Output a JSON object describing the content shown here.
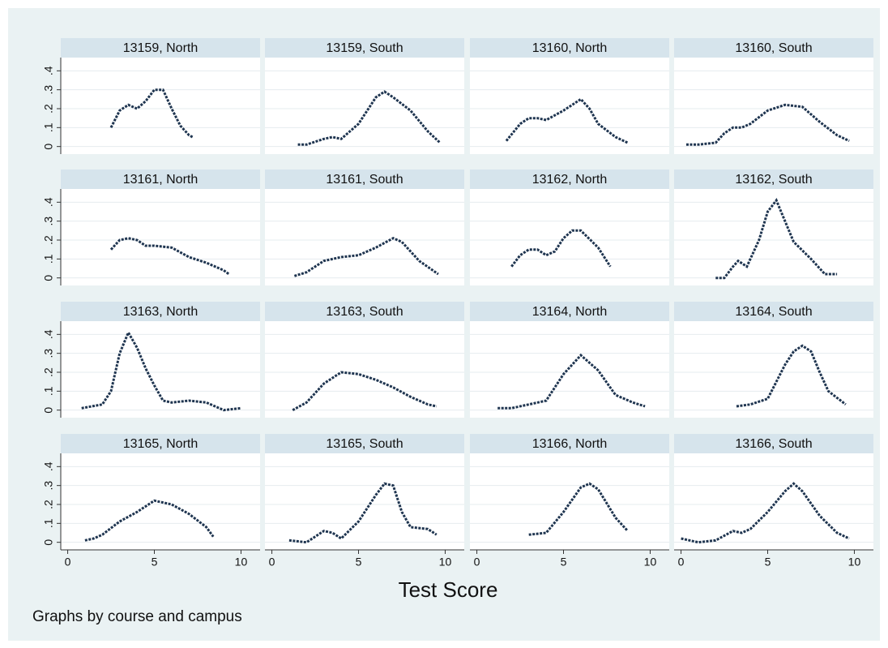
{
  "chart_data": {
    "type": "line",
    "xlabel": "Test Score",
    "note": "Graphs by course and campus",
    "color": "#1f3550",
    "xlim": [
      -0.4,
      11.1
    ],
    "ylim": [
      -0.04,
      0.47
    ],
    "xticks": [
      0,
      5,
      10
    ],
    "yticks": [
      0,
      {
        "value": 0.1,
        "label": ".1"
      },
      {
        "value": 0.2,
        "label": ".2"
      },
      {
        "value": 0.3,
        "label": ".3"
      },
      {
        "value": 0.4,
        "label": ".4"
      }
    ],
    "grid": true,
    "panels": [
      {
        "title": "13159, North",
        "x": [
          2.5,
          3,
          3.5,
          4,
          4.5,
          5,
          5.5,
          6,
          6.5,
          7,
          7.2
        ],
        "values": [
          0.1,
          0.19,
          0.22,
          0.2,
          0.24,
          0.3,
          0.3,
          0.2,
          0.11,
          0.06,
          0.05
        ]
      },
      {
        "title": "13159, South",
        "x": [
          1.5,
          2,
          3,
          3.5,
          4,
          5,
          6,
          6.5,
          7,
          8,
          9,
          9.7
        ],
        "values": [
          0.01,
          0.01,
          0.04,
          0.05,
          0.04,
          0.12,
          0.26,
          0.29,
          0.26,
          0.19,
          0.08,
          0.02
        ]
      },
      {
        "title": "13160, North",
        "x": [
          1.7,
          2.5,
          3,
          3.5,
          4,
          5,
          6,
          6.5,
          7,
          8,
          8.7
        ],
        "values": [
          0.03,
          0.12,
          0.15,
          0.15,
          0.14,
          0.19,
          0.25,
          0.2,
          0.12,
          0.05,
          0.02
        ]
      },
      {
        "title": "13160, South",
        "x": [
          0.3,
          1,
          2,
          2.5,
          3,
          3.5,
          4,
          5,
          6,
          7,
          8,
          9,
          9.7
        ],
        "values": [
          0.01,
          0.01,
          0.02,
          0.07,
          0.1,
          0.1,
          0.12,
          0.19,
          0.22,
          0.21,
          0.13,
          0.06,
          0.03
        ]
      },
      {
        "title": "13161, North",
        "x": [
          2.5,
          3,
          3.5,
          4,
          4.5,
          5,
          6,
          7,
          8,
          9,
          9.3
        ],
        "values": [
          0.15,
          0.2,
          0.21,
          0.2,
          0.17,
          0.17,
          0.16,
          0.11,
          0.08,
          0.04,
          0.02
        ]
      },
      {
        "title": "13161, South",
        "x": [
          1.3,
          2,
          3,
          4,
          5,
          6,
          7,
          7.5,
          8.5,
          9.6
        ],
        "values": [
          0.01,
          0.03,
          0.09,
          0.11,
          0.12,
          0.16,
          0.21,
          0.19,
          0.09,
          0.02
        ]
      },
      {
        "title": "13162, North",
        "x": [
          2,
          2.5,
          3,
          3.5,
          4,
          4.5,
          5,
          5.5,
          6,
          7,
          7.7
        ],
        "values": [
          0.06,
          0.12,
          0.15,
          0.15,
          0.12,
          0.14,
          0.21,
          0.25,
          0.25,
          0.16,
          0.06
        ]
      },
      {
        "title": "13162, South",
        "x": [
          2,
          2.5,
          3,
          3.3,
          3.8,
          4.5,
          5,
          5.5,
          6,
          6.5,
          7.5,
          8.3,
          9
        ],
        "values": [
          0,
          0,
          0.06,
          0.09,
          0.06,
          0.2,
          0.35,
          0.41,
          0.3,
          0.19,
          0.1,
          0.02,
          0.02
        ]
      },
      {
        "title": "13163, North",
        "x": [
          0.8,
          2,
          2.5,
          3,
          3.5,
          4,
          4.5,
          5,
          5.5,
          6,
          7,
          8,
          9,
          10
        ],
        "values": [
          0.01,
          0.03,
          0.1,
          0.3,
          0.41,
          0.33,
          0.22,
          0.13,
          0.05,
          0.04,
          0.05,
          0.04,
          0,
          0.01
        ]
      },
      {
        "title": "13163, South",
        "x": [
          1.2,
          2,
          3,
          4,
          5,
          6,
          7,
          8,
          9,
          9.5
        ],
        "values": [
          0,
          0.04,
          0.14,
          0.2,
          0.19,
          0.16,
          0.12,
          0.07,
          0.03,
          0.02
        ]
      },
      {
        "title": "13164, North",
        "x": [
          1.2,
          2,
          3,
          4,
          5,
          6,
          7,
          8,
          9,
          9.7
        ],
        "values": [
          0.01,
          0.01,
          0.03,
          0.05,
          0.19,
          0.29,
          0.21,
          0.08,
          0.04,
          0.02
        ]
      },
      {
        "title": "13164, South",
        "x": [
          3.2,
          4,
          5,
          6,
          6.5,
          7,
          7.5,
          8,
          8.5,
          9.5
        ],
        "values": [
          0.02,
          0.03,
          0.06,
          0.24,
          0.31,
          0.34,
          0.31,
          0.2,
          0.1,
          0.03
        ]
      },
      {
        "title": "13165, North",
        "x": [
          1,
          1.5,
          2,
          3,
          4,
          5,
          6,
          7,
          8,
          8.4
        ],
        "values": [
          0.01,
          0.02,
          0.04,
          0.11,
          0.16,
          0.22,
          0.2,
          0.15,
          0.08,
          0.03
        ]
      },
      {
        "title": "13165, South",
        "x": [
          1,
          2,
          3,
          3.5,
          4,
          5,
          6,
          6.5,
          7,
          7.5,
          8,
          9,
          9.5
        ],
        "values": [
          0.01,
          0,
          0.06,
          0.05,
          0.02,
          0.11,
          0.25,
          0.31,
          0.3,
          0.16,
          0.08,
          0.07,
          0.04
        ]
      },
      {
        "title": "13166, North",
        "x": [
          3,
          4,
          5,
          6,
          6.5,
          7,
          8,
          8.7
        ],
        "values": [
          0.04,
          0.05,
          0.16,
          0.29,
          0.31,
          0.28,
          0.13,
          0.06
        ]
      },
      {
        "title": "13166, South",
        "x": [
          0,
          1,
          2,
          3,
          3.5,
          4,
          5,
          6,
          6.5,
          7,
          8,
          9,
          9.7
        ],
        "values": [
          0.02,
          0,
          0.01,
          0.06,
          0.05,
          0.07,
          0.16,
          0.27,
          0.31,
          0.27,
          0.14,
          0.05,
          0.02
        ]
      }
    ]
  }
}
